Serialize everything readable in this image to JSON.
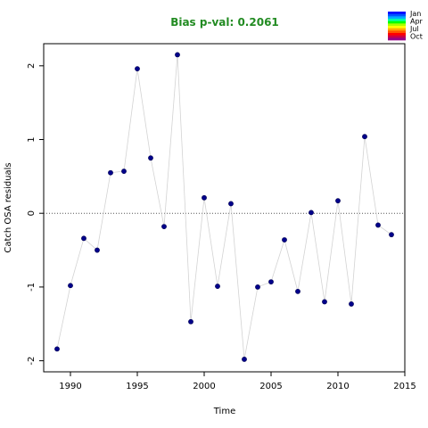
{
  "chart_data": {
    "type": "scatter",
    "title": "Bias p-val: 0.2061",
    "xlabel": "Time",
    "ylabel": "Catch OSA residuals",
    "xlim": [
      1988,
      2015
    ],
    "ylim": [
      -2.15,
      2.3
    ],
    "x_ticks": [
      1990,
      1995,
      2000,
      2005,
      2010,
      2015
    ],
    "y_ticks": [
      -2,
      -1,
      0,
      1,
      2
    ],
    "reference_line": 0,
    "grid": false,
    "x": [
      1989,
      1990,
      1991,
      1992,
      1993,
      1994,
      1995,
      1996,
      1997,
      1998,
      1999,
      2000,
      2001,
      2002,
      2003,
      2004,
      2005,
      2006,
      2007,
      2008,
      2009,
      2010,
      2011,
      2012,
      2013,
      2014
    ],
    "values": [
      -1.84,
      -0.98,
      -0.34,
      -0.5,
      0.55,
      0.57,
      1.96,
      0.75,
      -0.18,
      2.15,
      -1.47,
      0.21,
      -0.99,
      0.13,
      -1.98,
      -1.0,
      -0.93,
      -0.36,
      -1.06,
      0.01,
      -1.2,
      0.17,
      -1.23,
      1.04,
      -0.16,
      -0.29
    ],
    "line_color": "#d3d3d3",
    "point_color": "#00008B",
    "title_color": "#228B22",
    "legend": {
      "position": "top-right",
      "labels": [
        "Jan",
        "Apr",
        "Jul",
        "Oct"
      ],
      "colors": [
        "#0000FF",
        "#0055FF",
        "#00AAFF",
        "#00FFAA",
        "#00FF00",
        "#AAFF00",
        "#FFFF00",
        "#FFAA00",
        "#FF5500",
        "#FF0000",
        "#CC0044",
        "#990088"
      ]
    }
  }
}
